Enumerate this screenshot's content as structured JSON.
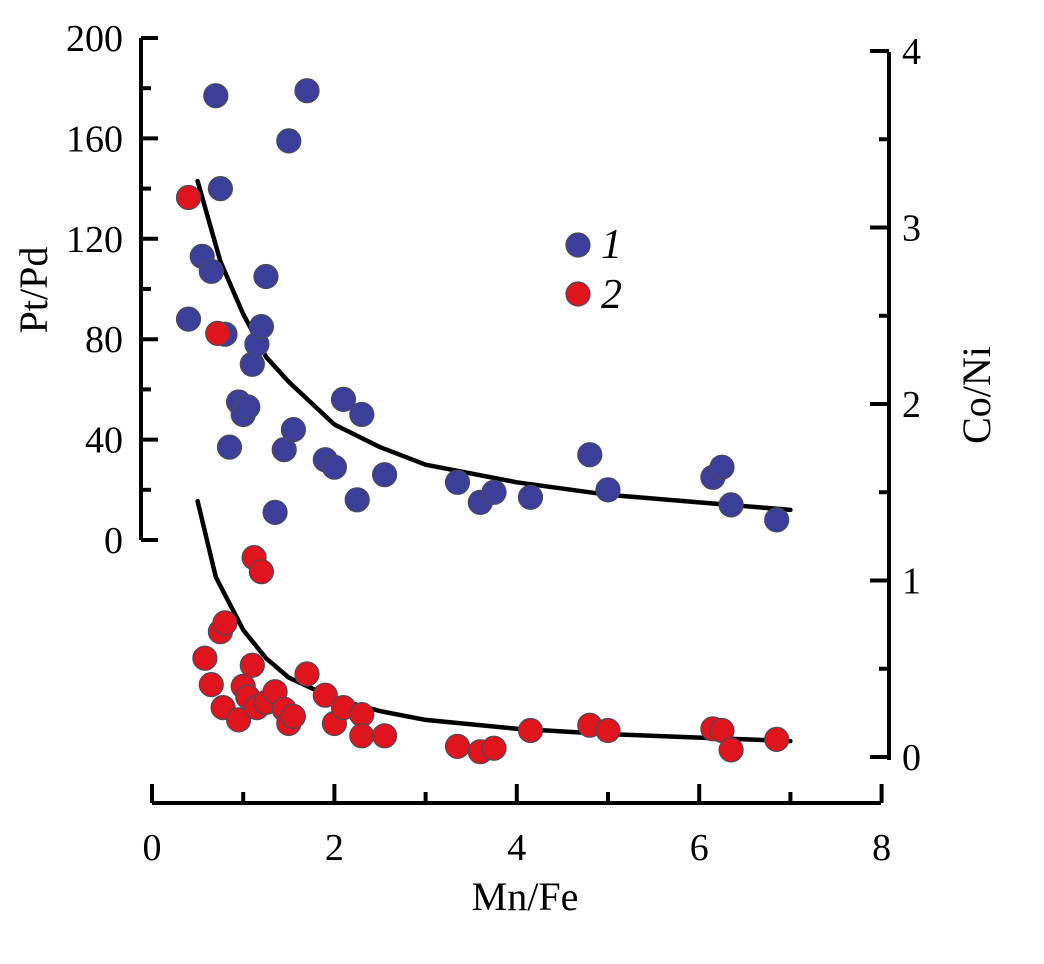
{
  "chart_data": {
    "type": "scatter",
    "xlabel": "Mn/Fe",
    "ylabel_left": "Pt/Pd",
    "ylabel_right": "Co/Ni",
    "xlim": [
      0,
      8
    ],
    "ylim_left": [
      0,
      200
    ],
    "ylim_right": [
      0,
      4
    ],
    "x_ticks": [
      "0",
      "2",
      "4",
      "6",
      "8"
    ],
    "y_left_ticks": [
      "0",
      "40",
      "80",
      "120",
      "160",
      "200"
    ],
    "y_right_ticks": [
      "0",
      "1",
      "2",
      "3",
      "4"
    ],
    "legend_position": "upper-center",
    "series": [
      {
        "name": "1",
        "color": "#3b3f9a",
        "axis": "left",
        "points": [
          [
            0.4,
            88
          ],
          [
            0.55,
            113
          ],
          [
            0.65,
            107
          ],
          [
            0.7,
            177
          ],
          [
            0.75,
            140
          ],
          [
            0.8,
            82
          ],
          [
            0.85,
            37
          ],
          [
            0.95,
            55
          ],
          [
            1.0,
            50
          ],
          [
            1.05,
            53
          ],
          [
            1.1,
            70
          ],
          [
            1.15,
            78
          ],
          [
            1.2,
            85
          ],
          [
            1.25,
            105
          ],
          [
            1.35,
            11
          ],
          [
            1.45,
            36
          ],
          [
            1.5,
            159
          ],
          [
            1.55,
            44
          ],
          [
            1.7,
            179
          ],
          [
            1.9,
            32
          ],
          [
            2.0,
            29
          ],
          [
            2.1,
            56
          ],
          [
            2.25,
            16
          ],
          [
            2.3,
            50
          ],
          [
            2.55,
            26
          ],
          [
            3.35,
            23
          ],
          [
            3.6,
            15
          ],
          [
            3.75,
            19
          ],
          [
            4.15,
            17
          ],
          [
            4.8,
            34
          ],
          [
            5.0,
            20
          ],
          [
            6.15,
            25
          ],
          [
            6.25,
            29
          ],
          [
            6.35,
            14
          ],
          [
            6.85,
            8
          ]
        ],
        "fit": [
          [
            0.5,
            143
          ],
          [
            0.75,
            111
          ],
          [
            1.0,
            90
          ],
          [
            1.25,
            73
          ],
          [
            1.5,
            63
          ],
          [
            2.0,
            46
          ],
          [
            2.5,
            37
          ],
          [
            3.0,
            30
          ],
          [
            4.0,
            23
          ],
          [
            5.0,
            18
          ],
          [
            6.0,
            15
          ],
          [
            7.0,
            12
          ]
        ]
      },
      {
        "name": "2",
        "color": "#e0141c",
        "axis": "right",
        "points": [
          [
            0.4,
            3.17
          ],
          [
            0.72,
            2.4
          ],
          [
            0.58,
            0.56
          ],
          [
            0.65,
            0.41
          ],
          [
            0.75,
            0.71
          ],
          [
            0.8,
            0.76
          ],
          [
            0.78,
            0.28
          ],
          [
            0.95,
            0.21
          ],
          [
            1.0,
            0.4
          ],
          [
            1.05,
            0.34
          ],
          [
            1.1,
            0.52
          ],
          [
            1.15,
            0.28
          ],
          [
            1.12,
            1.13
          ],
          [
            1.2,
            1.05
          ],
          [
            1.25,
            0.31
          ],
          [
            1.35,
            0.37
          ],
          [
            1.45,
            0.27
          ],
          [
            1.5,
            0.19
          ],
          [
            1.55,
            0.23
          ],
          [
            1.7,
            0.47
          ],
          [
            1.9,
            0.35
          ],
          [
            2.0,
            0.19
          ],
          [
            2.1,
            0.28
          ],
          [
            2.3,
            0.24
          ],
          [
            2.3,
            0.12
          ],
          [
            2.55,
            0.12
          ],
          [
            3.35,
            0.06
          ],
          [
            3.6,
            0.03
          ],
          [
            3.75,
            0.05
          ],
          [
            4.15,
            0.15
          ],
          [
            4.8,
            0.18
          ],
          [
            5.0,
            0.15
          ],
          [
            6.15,
            0.16
          ],
          [
            6.25,
            0.15
          ],
          [
            6.35,
            0.04
          ],
          [
            6.85,
            0.1
          ]
        ],
        "fit": [
          [
            0.5,
            1.45
          ],
          [
            0.7,
            1.02
          ],
          [
            1.0,
            0.72
          ],
          [
            1.25,
            0.56
          ],
          [
            1.5,
            0.45
          ],
          [
            2.0,
            0.33
          ],
          [
            2.5,
            0.26
          ],
          [
            3.0,
            0.21
          ],
          [
            4.0,
            0.16
          ],
          [
            5.0,
            0.13
          ],
          [
            6.0,
            0.11
          ],
          [
            7.0,
            0.09
          ]
        ]
      }
    ]
  }
}
